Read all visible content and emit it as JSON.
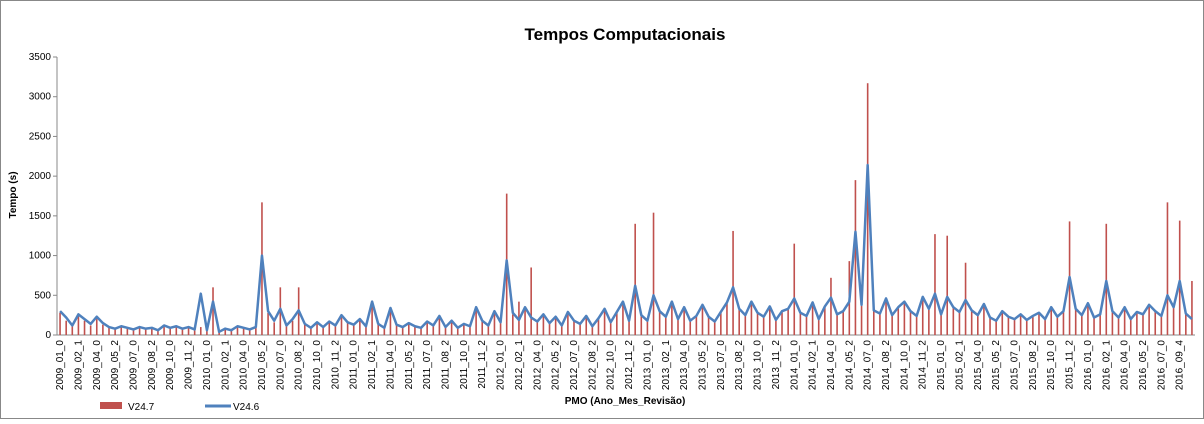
{
  "chart_data": {
    "type": "bar_line",
    "title": "Tempos Computacionais",
    "x_label": "PMO (Ano_Mes_Revisão)",
    "y_label": "Tempo (s)",
    "ylim": [
      0,
      3500
    ],
    "yticks": [
      0,
      500,
      1000,
      1500,
      2000,
      2500,
      3000,
      3500
    ],
    "grid": false,
    "legend": "bottom-left",
    "categories": [
      "2009_01_0",
      null,
      null,
      "2009_02_1",
      null,
      null,
      "2009_04_0",
      null,
      null,
      "2009_05_2",
      null,
      null,
      "2009_07_0",
      null,
      null,
      "2009_08_2",
      null,
      null,
      "2009_10_0",
      null,
      null,
      "2009_11_2",
      null,
      null,
      "2010_01_0",
      null,
      null,
      "2010_02_1",
      null,
      null,
      "2010_04_0",
      null,
      null,
      "2010_05_2",
      null,
      null,
      "2010_07_0",
      null,
      null,
      "2010_08_2",
      null,
      null,
      "2010_10_0",
      null,
      null,
      "2010_11_2",
      null,
      null,
      "2011_01_0",
      null,
      null,
      "2011_02_1",
      null,
      null,
      "2011_04_0",
      null,
      null,
      "2011_05_2",
      null,
      null,
      "2011_07_0",
      null,
      null,
      "2011_08_2",
      null,
      null,
      "2011_10_0",
      null,
      null,
      "2011_11_2",
      null,
      null,
      "2012_01_0",
      null,
      null,
      "2012_02_1",
      null,
      null,
      "2012_04_0",
      null,
      null,
      "2012_05_2",
      null,
      null,
      "2012_07_0",
      null,
      null,
      "2012_08_2",
      null,
      null,
      "2012_10_0",
      null,
      null,
      "2012_11_2",
      null,
      null,
      "2013_01_0",
      null,
      null,
      "2013_02_1",
      null,
      null,
      "2013_04_0",
      null,
      null,
      "2013_05_2",
      null,
      null,
      "2013_07_0",
      null,
      null,
      "2013_08_2",
      null,
      null,
      "2013_10_0",
      null,
      null,
      "2013_11_2",
      null,
      null,
      "2014_01_0",
      null,
      null,
      "2014_02_1",
      null,
      null,
      "2014_04_0",
      null,
      null,
      "2014_05_2",
      null,
      null,
      "2014_07_0",
      null,
      null,
      "2014_08_2",
      null,
      null,
      "2014_10_0",
      null,
      null,
      "2014_11_2",
      null,
      null,
      "2015_01_0",
      null,
      null,
      "2015_02_1",
      null,
      null,
      "2015_04_0",
      null,
      null,
      "2015_05_2",
      null,
      null,
      "2015_07_0",
      null,
      null,
      "2015_08_2",
      null,
      null,
      "2015_10_0",
      null,
      null,
      "2015_11_2",
      null,
      null,
      "2016_01_0",
      null,
      null,
      "2016_02_1",
      null,
      null,
      "2016_04_0",
      null,
      null,
      "2016_05_2",
      null,
      null,
      "2016_07_0",
      null,
      null,
      "2016_09_4",
      null,
      null
    ],
    "series": [
      {
        "name": "V24.7",
        "type": "bar",
        "color": "#c0504d",
        "values": [
          280,
          180,
          110,
          250,
          180,
          120,
          200,
          130,
          90,
          70,
          100,
          80,
          60,
          90,
          70,
          80,
          50,
          100,
          80,
          100,
          70,
          90,
          60,
          100,
          50,
          600,
          40,
          70,
          50,
          100,
          80,
          60,
          90,
          1670,
          280,
          160,
          600,
          110,
          180,
          600,
          130,
          80,
          150,
          90,
          160,
          110,
          230,
          150,
          120,
          180,
          100,
          400,
          130,
          80,
          320,
          120,
          90,
          140,
          100,
          80,
          160,
          110,
          220,
          90,
          170,
          80,
          130,
          100,
          330,
          170,
          110,
          280,
          150,
          1780,
          260,
          420,
          330,
          850,
          160,
          240,
          140,
          220,
          110,
          280,
          170,
          130,
          230,
          100,
          200,
          320,
          150,
          280,
          410,
          170,
          1400,
          240,
          170,
          1540,
          290,
          220,
          400,
          190,
          340,
          170,
          230,
          370,
          220,
          160,
          280,
          400,
          1310,
          320,
          240,
          410,
          270,
          220,
          350,
          180,
          290,
          320,
          1150,
          270,
          230,
          400,
          190,
          350,
          720,
          250,
          290,
          930,
          1950,
          370,
          3170,
          300,
          260,
          450,
          240,
          340,
          410,
          290,
          230,
          470,
          320,
          1270,
          250,
          1250,
          340,
          280,
          910,
          300,
          240,
          380,
          210,
          170,
          290,
          220,
          190,
          250,
          180,
          230,
          270,
          190,
          340,
          220,
          290,
          1430,
          320,
          240,
          390,
          210,
          250,
          1400,
          290,
          210,
          340,
          190,
          280,
          250,
          370,
          290,
          230,
          1670,
          340,
          1440,
          260,
          680
        ]
      },
      {
        "name": "V24.6",
        "type": "line",
        "color": "#4f81bd",
        "values": [
          300,
          220,
          120,
          260,
          200,
          140,
          230,
          150,
          100,
          80,
          110,
          90,
          70,
          100,
          80,
          90,
          60,
          120,
          90,
          110,
          80,
          100,
          70,
          520,
          60,
          420,
          40,
          80,
          60,
          110,
          90,
          70,
          100,
          1000,
          300,
          180,
          330,
          120,
          200,
          310,
          140,
          90,
          160,
          100,
          170,
          120,
          250,
          160,
          130,
          200,
          110,
          420,
          140,
          90,
          340,
          130,
          100,
          150,
          110,
          90,
          170,
          120,
          240,
          100,
          180,
          90,
          140,
          110,
          350,
          180,
          120,
          300,
          160,
          940,
          280,
          190,
          350,
          220,
          170,
          260,
          150,
          230,
          120,
          290,
          180,
          140,
          240,
          110,
          210,
          330,
          160,
          290,
          420,
          180,
          620,
          250,
          180,
          500,
          300,
          230,
          420,
          200,
          350,
          180,
          240,
          380,
          230,
          170,
          290,
          410,
          600,
          330,
          250,
          420,
          280,
          230,
          360,
          190,
          300,
          330,
          460,
          280,
          240,
          410,
          200,
          360,
          470,
          260,
          300,
          420,
          1300,
          380,
          2140,
          310,
          270,
          460,
          250,
          350,
          420,
          300,
          240,
          480,
          330,
          520,
          260,
          480,
          350,
          290,
          440,
          310,
          250,
          390,
          220,
          180,
          300,
          230,
          200,
          260,
          190,
          240,
          280,
          200,
          350,
          230,
          300,
          730,
          330,
          250,
          400,
          220,
          260,
          680,
          300,
          220,
          350,
          200,
          290,
          260,
          380,
          300,
          240,
          500,
          350,
          680,
          270,
          200
        ]
      }
    ]
  }
}
